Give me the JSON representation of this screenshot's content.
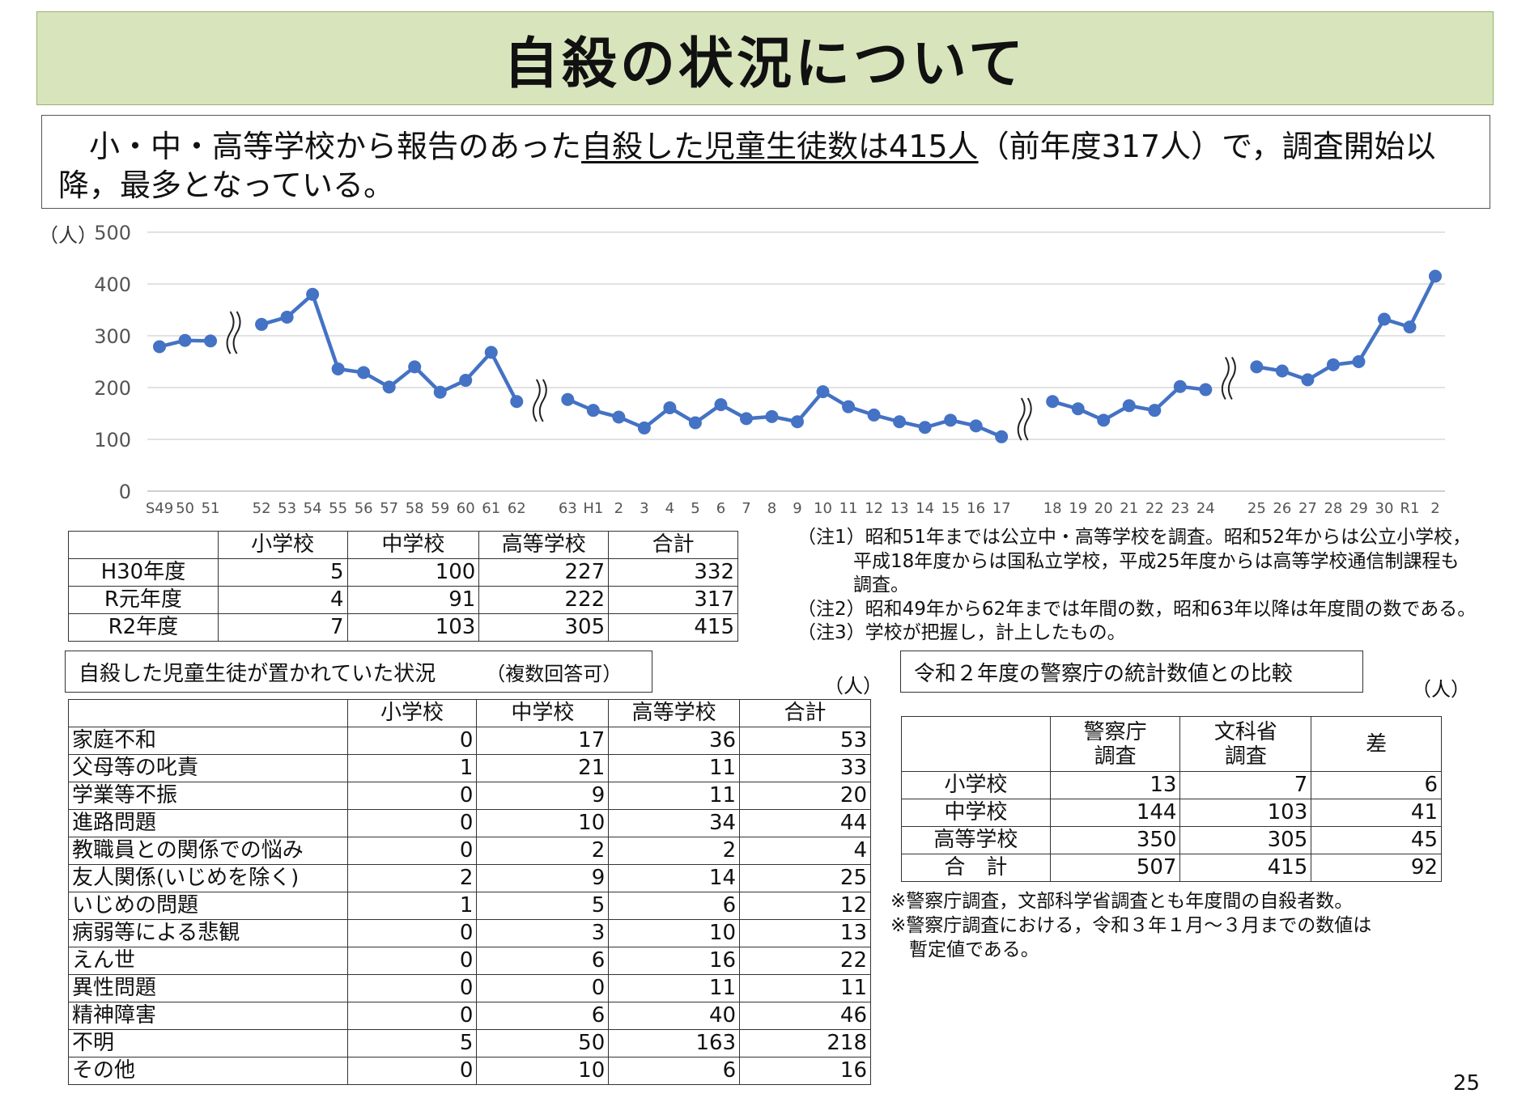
{
  "title": "自殺の状況について",
  "summary": {
    "pre": "　小・中・高等学校から報告のあった",
    "underlined": "自殺した児童生徒数は415人",
    "post": "（前年度317人）で，調査開始以降，最多となっている。"
  },
  "chart_data": {
    "type": "line",
    "ylabel": "（人）",
    "ylim": [
      0,
      500
    ],
    "yticks": [
      "0",
      "100",
      "200",
      "300",
      "400",
      "500"
    ],
    "grid": true,
    "line_color": "#4472c4",
    "segments": [
      {
        "categories": [
          "S49",
          "50",
          "51"
        ],
        "values": [
          279,
          291,
          290
        ]
      },
      {
        "categories": [
          "52",
          "53",
          "54",
          "55",
          "56",
          "57",
          "58",
          "59",
          "60",
          "61",
          "62"
        ],
        "values": [
          322,
          336,
          380,
          236,
          229,
          201,
          240,
          191,
          214,
          268,
          173
        ]
      },
      {
        "categories": [
          "63",
          "H1",
          "2",
          "3",
          "4",
          "5",
          "6",
          "7",
          "8",
          "9",
          "10",
          "11",
          "12",
          "13",
          "14",
          "15",
          "16",
          "17"
        ],
        "values": [
          177,
          156,
          143,
          122,
          161,
          132,
          167,
          140,
          144,
          134,
          192,
          163,
          147,
          134,
          123,
          137,
          126,
          105
        ]
      },
      {
        "categories": [
          "18",
          "19",
          "20",
          "21",
          "22",
          "23",
          "24"
        ],
        "values": [
          173,
          159,
          137,
          165,
          156,
          202,
          196
        ]
      },
      {
        "categories": [
          "25",
          "26",
          "27",
          "28",
          "29",
          "30",
          "R1",
          "2"
        ],
        "values": [
          240,
          232,
          215,
          244,
          250,
          332,
          317,
          415
        ]
      }
    ]
  },
  "yearly_table": {
    "headers": [
      "",
      "小学校",
      "中学校",
      "高等学校",
      "合計"
    ],
    "rows": [
      [
        "H30年度",
        "5",
        "100",
        "227",
        "332"
      ],
      [
        "R元年度",
        "4",
        "91",
        "222",
        "317"
      ],
      [
        "R2年度",
        "7",
        "103",
        "305",
        "415"
      ]
    ]
  },
  "notes": [
    "（注1）昭和51年までは公立中・高等学校を調査。昭和52年からは公立小学校，",
    "　　　平成18年度からは国私立学校，平成25年度からは高等学校通信制課程も",
    "　　　調査。",
    "（注2）昭和49年から62年までは年間の数，昭和63年以降は年度間の数である。",
    "（注3）学校が把握し，計上したもの。"
  ],
  "situation": {
    "label": "自殺した児童生徒が置かれていた状況",
    "sublabel": "（複数回答可）",
    "unit": "（人）",
    "headers": [
      "",
      "小学校",
      "中学校",
      "高等学校",
      "合計"
    ],
    "rows": [
      [
        "家庭不和",
        "0",
        "17",
        "36",
        "53"
      ],
      [
        "父母等の叱責",
        "1",
        "21",
        "11",
        "33"
      ],
      [
        "学業等不振",
        "0",
        "9",
        "11",
        "20"
      ],
      [
        "進路問題",
        "0",
        "10",
        "34",
        "44"
      ],
      [
        "教職員との関係での悩み",
        "0",
        "2",
        "2",
        "4"
      ],
      [
        "友人関係(いじめを除く)",
        "2",
        "9",
        "14",
        "25"
      ],
      [
        "いじめの問題",
        "1",
        "5",
        "6",
        "12"
      ],
      [
        "病弱等による悲観",
        "0",
        "3",
        "10",
        "13"
      ],
      [
        "えん世",
        "0",
        "6",
        "16",
        "22"
      ],
      [
        "異性問題",
        "0",
        "0",
        "11",
        "11"
      ],
      [
        "精神障害",
        "0",
        "6",
        "40",
        "46"
      ],
      [
        "不明",
        "5",
        "50",
        "163",
        "218"
      ],
      [
        "その他",
        "0",
        "10",
        "6",
        "16"
      ]
    ]
  },
  "police": {
    "label": "令和２年度の警察庁の統計数値との比較",
    "unit": "（人）",
    "headers": [
      "",
      "警察庁\n調査",
      "文科省\n調査",
      "差"
    ],
    "rows": [
      [
        "小学校",
        "13",
        "7",
        "6"
      ],
      [
        "中学校",
        "144",
        "103",
        "41"
      ],
      [
        "高等学校",
        "350",
        "305",
        "45"
      ],
      [
        "合　計",
        "507",
        "415",
        "92"
      ]
    ],
    "notes": [
      "※警察庁調査，文部科学省調査とも年度間の自殺者数。",
      "※警察庁調査における，令和３年１月～３月までの数値は",
      "　暫定値である。"
    ]
  },
  "page_number": "25"
}
